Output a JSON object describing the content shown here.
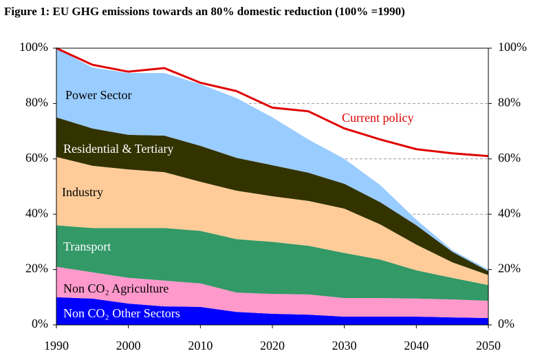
{
  "chart_data": {
    "type": "area",
    "stacked": true,
    "title": "Figure 1: EU GHG emissions towards an 80% domestic reduction (100% =1990)",
    "x": [
      1990,
      1995,
      2000,
      2005,
      2010,
      2015,
      2020,
      2025,
      2030,
      2035,
      2040,
      2045,
      2050
    ],
    "series": [
      {
        "name": "Non CO₂ Other Sectors",
        "color": "#0000ff",
        "values": [
          10,
          9.5,
          7.7,
          6.7,
          6.5,
          4.7,
          4,
          3.7,
          3,
          3,
          3,
          2.7,
          2.5
        ]
      },
      {
        "name": "Non CO₂ Agriculture",
        "color": "#ff99cc",
        "values": [
          11,
          9.5,
          9.3,
          9.3,
          8.5,
          7,
          7.2,
          7.3,
          6.7,
          6.7,
          6.5,
          6.5,
          6.2
        ]
      },
      {
        "name": "Transport",
        "color": "#339966",
        "values": [
          15,
          16,
          18,
          19,
          19,
          19.3,
          18.8,
          17.6,
          16.3,
          13.9,
          10.2,
          7.8,
          5.7
        ]
      },
      {
        "name": "Industry",
        "color": "#ffcc99",
        "values": [
          24.7,
          22.5,
          21.2,
          20.2,
          17.7,
          17.5,
          16.5,
          16.2,
          16,
          12.7,
          9.3,
          5.6,
          3.6
        ]
      },
      {
        "name": "Residential & Tertiary",
        "color": "#333300",
        "values": [
          14.3,
          13.5,
          12.5,
          13.2,
          13,
          11.9,
          11.2,
          10.2,
          9,
          8,
          7,
          3.8,
          1.4
        ]
      },
      {
        "name": "Power Sector",
        "color": "#99ccff",
        "values": [
          25,
          22,
          22.3,
          22.6,
          22.3,
          21.6,
          17.3,
          12,
          9,
          6.2,
          2,
          0.6,
          0.6
        ]
      }
    ],
    "line_series": {
      "name": "Current policy",
      "color": "#e00000",
      "values": [
        100,
        94,
        91.5,
        92.8,
        87.5,
        84.5,
        78.5,
        77.2,
        71,
        67,
        63.5,
        62,
        61
      ]
    },
    "xlim": [
      1990,
      2050
    ],
    "xticks": [
      1990,
      2000,
      2010,
      2020,
      2030,
      2040,
      2050
    ],
    "ylim": [
      0,
      100
    ],
    "yticks": [
      {
        "value": 0,
        "label": "0%"
      },
      {
        "value": 20,
        "label": "20%"
      },
      {
        "value": 40,
        "label": "40%"
      },
      {
        "value": 60,
        "label": "60%"
      },
      {
        "value": 80,
        "label": "80%"
      },
      {
        "value": 100,
        "label": "100%"
      }
    ],
    "y2lim": [
      0,
      100
    ],
    "y2ticks": [
      {
        "value": 0,
        "label": "0%"
      },
      {
        "value": 20,
        "label": "20%"
      },
      {
        "value": 40,
        "label": "40%"
      },
      {
        "value": 60,
        "label": "60%"
      },
      {
        "value": 80,
        "label": "80%"
      },
      {
        "value": 100,
        "label": "100%"
      }
    ],
    "grid": true
  }
}
